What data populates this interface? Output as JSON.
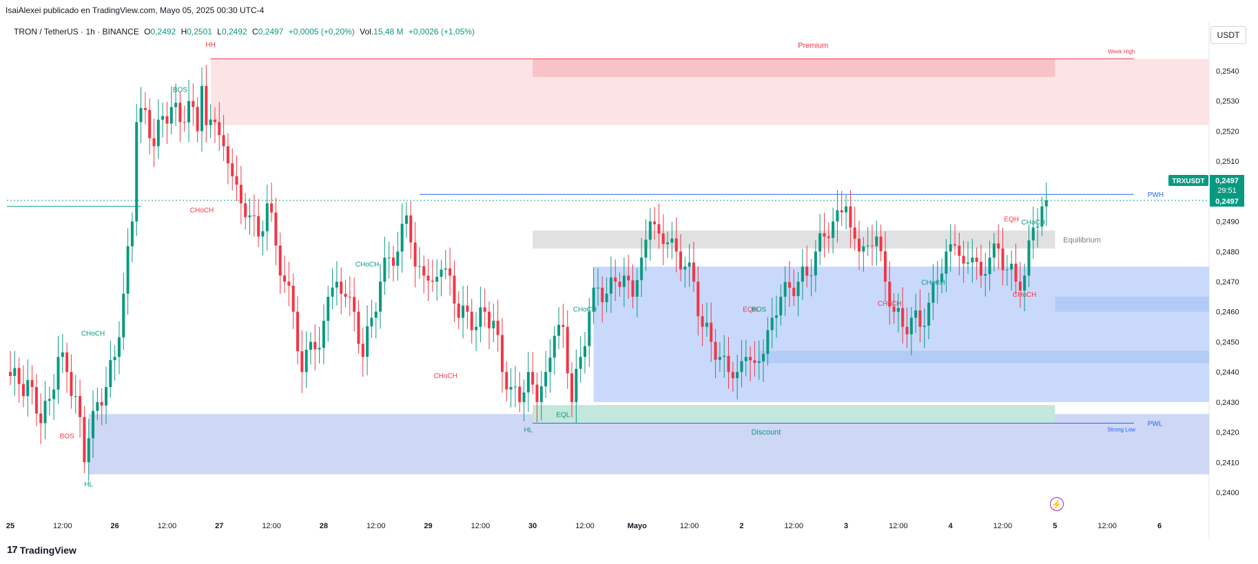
{
  "header": {
    "publisher": "IsaiAlexei publicado en TradingView.com, Mayo 05, 2025 00:30 UTC-4"
  },
  "legend": {
    "symbol": "TRON / TetherUS · 1h · BINANCE",
    "o_label": "O",
    "o": "0,2492",
    "h_label": "H",
    "h": "0,2501",
    "l_label": "L",
    "l": "0,2492",
    "c_label": "C",
    "c": "0,2497",
    "change": "+0,0005 (+0,20%)",
    "vol_label": "Vol.",
    "vol": "15,48 M",
    "vol_change": "+0,0026 (+1,05%)"
  },
  "currency_button": "USDT",
  "footer": {
    "logo_text": "TradingView",
    "logo_mark": "17"
  },
  "flash_icon": "lightning-icon",
  "colors": {
    "up": "#089981",
    "down": "#f23645",
    "premium": "#fce4e6",
    "premium_strong": "#f8c2c8",
    "discount": "#c9d3f3",
    "demand": "#c8d9fb",
    "demand_strong": "#b3cbf7",
    "equilibrium": "#e1e1e4",
    "blue_line": "#2962ff",
    "green_zone": "#c3e7da"
  },
  "chart_data": {
    "type": "candlestick",
    "symbol_tag": "TRXUSDT",
    "last_price": "0,2497",
    "countdown": "29:51",
    "price_line_label": "0,2497",
    "y_ticks": [
      "0,2540",
      "0,2530",
      "0,2520",
      "0,2510",
      "0,2490",
      "0,2480",
      "0,2470",
      "0,2460",
      "0,2450",
      "0,2440",
      "0,2430",
      "0,2420",
      "0,2410",
      "0,2400"
    ],
    "y_tick_values": [
      0.254,
      0.253,
      0.252,
      0.251,
      0.249,
      0.248,
      0.247,
      0.246,
      0.245,
      0.244,
      0.243,
      0.242,
      0.241,
      0.24
    ],
    "ylim": [
      0.2396,
      0.2556
    ],
    "x_ticks": [
      "25",
      "12:00",
      "26",
      "12:00",
      "27",
      "12:00",
      "28",
      "12:00",
      "29",
      "12:00",
      "30",
      "12:00",
      "Mayo",
      "12:00",
      "2",
      "12:00",
      "3",
      "12:00",
      "4",
      "12:00",
      "5",
      "12:00",
      "6"
    ],
    "x_tick_hours": [
      0,
      12,
      24,
      36,
      48,
      60,
      72,
      84,
      96,
      108,
      120,
      132,
      144,
      156,
      168,
      180,
      192,
      204,
      216,
      228,
      240,
      252,
      264
    ],
    "candles_anchor_close": [
      [
        0,
        0.244
      ],
      [
        3,
        0.2436
      ],
      [
        6,
        0.2435
      ],
      [
        8,
        0.2423
      ],
      [
        10,
        0.2431
      ],
      [
        12,
        0.2445
      ],
      [
        14,
        0.244
      ],
      [
        15,
        0.2432
      ],
      [
        16,
        0.2432
      ],
      [
        17,
        0.2425
      ],
      [
        18,
        0.241
      ],
      [
        19,
        0.2418
      ],
      [
        21,
        0.243
      ],
      [
        23,
        0.2435
      ],
      [
        25,
        0.2445
      ],
      [
        27,
        0.2466
      ],
      [
        29,
        0.249
      ],
      [
        30,
        0.2523
      ],
      [
        32,
        0.2527
      ],
      [
        34,
        0.2515
      ],
      [
        36,
        0.2525
      ],
      [
        38,
        0.2528
      ],
      [
        40,
        0.2523
      ],
      [
        42,
        0.253
      ],
      [
        44,
        0.252
      ],
      [
        45,
        0.2535
      ],
      [
        46,
        0.2522
      ],
      [
        48,
        0.2523
      ],
      [
        50,
        0.2515
      ],
      [
        52,
        0.2505
      ],
      [
        54,
        0.2496
      ],
      [
        56,
        0.2492
      ],
      [
        58,
        0.2485
      ],
      [
        60,
        0.2496
      ],
      [
        62,
        0.2482
      ],
      [
        64,
        0.247
      ],
      [
        66,
        0.246
      ],
      [
        68,
        0.244
      ],
      [
        70,
        0.245
      ],
      [
        72,
        0.2448
      ],
      [
        74,
        0.2465
      ],
      [
        76,
        0.247
      ],
      [
        78,
        0.2465
      ],
      [
        80,
        0.246
      ],
      [
        82,
        0.2445
      ],
      [
        84,
        0.2458
      ],
      [
        86,
        0.247
      ],
      [
        88,
        0.2478
      ],
      [
        90,
        0.248
      ],
      [
        92,
        0.2492
      ],
      [
        93,
        0.2483
      ],
      [
        94,
        0.2475
      ],
      [
        96,
        0.2472
      ],
      [
        98,
        0.247
      ],
      [
        100,
        0.2474
      ],
      [
        102,
        0.2472
      ],
      [
        104,
        0.2458
      ],
      [
        106,
        0.246
      ],
      [
        108,
        0.2455
      ],
      [
        110,
        0.246
      ],
      [
        112,
        0.2457
      ],
      [
        114,
        0.244
      ],
      [
        116,
        0.2435
      ],
      [
        118,
        0.243
      ],
      [
        120,
        0.244
      ],
      [
        122,
        0.243
      ],
      [
        124,
        0.244
      ],
      [
        126,
        0.2452
      ],
      [
        128,
        0.2455
      ],
      [
        130,
        0.243
      ],
      [
        132,
        0.2445
      ],
      [
        134,
        0.246
      ],
      [
        136,
        0.2468
      ],
      [
        138,
        0.2466
      ],
      [
        140,
        0.247
      ],
      [
        142,
        0.2472
      ],
      [
        144,
        0.2465
      ],
      [
        146,
        0.2478
      ],
      [
        148,
        0.249
      ],
      [
        150,
        0.2486
      ],
      [
        152,
        0.2483
      ],
      [
        154,
        0.248
      ],
      [
        156,
        0.2475
      ],
      [
        158,
        0.247
      ],
      [
        160,
        0.2455
      ],
      [
        162,
        0.245
      ],
      [
        164,
        0.2445
      ],
      [
        166,
        0.244
      ],
      [
        168,
        0.244
      ],
      [
        170,
        0.2445
      ],
      [
        172,
        0.2443
      ],
      [
        174,
        0.2446
      ],
      [
        176,
        0.2458
      ],
      [
        178,
        0.2465
      ],
      [
        180,
        0.2468
      ],
      [
        182,
        0.247
      ],
      [
        184,
        0.2472
      ],
      [
        186,
        0.248
      ],
      [
        188,
        0.2485
      ],
      [
        190,
        0.249
      ],
      [
        192,
        0.2493
      ],
      [
        193,
        0.2495
      ],
      [
        194,
        0.2488
      ],
      [
        196,
        0.248
      ],
      [
        198,
        0.2482
      ],
      [
        200,
        0.2485
      ],
      [
        202,
        0.247
      ],
      [
        204,
        0.246
      ],
      [
        206,
        0.2455
      ],
      [
        208,
        0.2458
      ],
      [
        210,
        0.2455
      ],
      [
        212,
        0.2463
      ],
      [
        214,
        0.247
      ],
      [
        216,
        0.248
      ],
      [
        218,
        0.2482
      ],
      [
        220,
        0.2476
      ],
      [
        222,
        0.2478
      ],
      [
        224,
        0.2472
      ],
      [
        226,
        0.2478
      ],
      [
        228,
        0.2481
      ],
      [
        230,
        0.2474
      ],
      [
        232,
        0.247
      ],
      [
        234,
        0.2472
      ],
      [
        236,
        0.2488
      ],
      [
        238,
        0.2495
      ],
      [
        239,
        0.2497
      ]
    ],
    "zones": [
      {
        "name": "Premium",
        "type": "premium",
        "y_top": 0.2544,
        "y_bottom": 0.2522,
        "x_start": 46,
        "x_end": "end"
      },
      {
        "name": "",
        "type": "premium_strong",
        "y_top": 0.2544,
        "y_bottom": 0.2538,
        "x_start": 120,
        "x_end": 240
      },
      {
        "name": "Equilibrium",
        "type": "equilibrium",
        "y_top": 0.2487,
        "y_bottom": 0.2481,
        "x_start": 120,
        "x_end": 240
      },
      {
        "name": "",
        "type": "demand",
        "y_top": 0.2475,
        "y_bottom": 0.243,
        "x_start": 134,
        "x_end": "end"
      },
      {
        "name": "",
        "type": "demand_strong",
        "y_top": 0.2465,
        "y_bottom": 0.246,
        "x_start": 240,
        "x_end": "end"
      },
      {
        "name": "",
        "type": "demand_strong",
        "y_top": 0.2447,
        "y_bottom": 0.2443,
        "x_start": 172,
        "x_end": "end"
      },
      {
        "name": "Discount",
        "type": "discount",
        "y_top": 0.2426,
        "y_bottom": 0.2406,
        "x_start": 18,
        "x_end": "end"
      },
      {
        "name": "",
        "type": "green_zone",
        "y_top": 0.2429,
        "y_bottom": 0.2423,
        "x_start": 120,
        "x_end": 240
      }
    ],
    "horizontal_levels": [
      {
        "label": "Week High",
        "price": 0.2544,
        "x_start": 46,
        "x_end": 260,
        "color": "#f23645"
      },
      {
        "label": "PWH",
        "price": 0.2499,
        "x_start": 94,
        "x_end": 260,
        "color": "#2962ff"
      },
      {
        "label": "PWL",
        "price": 0.2423,
        "x_start": 120,
        "x_end": 260,
        "color": "#2962ff"
      },
      {
        "label": "Strong Low",
        "price": 0.2423,
        "x_start": 120,
        "x_end": 260,
        "color": "#2962ff"
      }
    ],
    "structure_labels": [
      {
        "text": "HH",
        "hour": 46,
        "price": 0.2548,
        "color": "#f23645"
      },
      {
        "text": "BOS",
        "hour": 39,
        "price": 0.2533,
        "color": "#089981"
      },
      {
        "text": "CHoCH",
        "hour": 44,
        "price": 0.2493,
        "color": "#f23645"
      },
      {
        "text": "CHoCH",
        "hour": 19,
        "price": 0.2452,
        "color": "#089981"
      },
      {
        "text": "BOS",
        "hour": 13,
        "price": 0.2418,
        "color": "#f23645"
      },
      {
        "text": "HL",
        "hour": 18,
        "price": 0.2402,
        "color": "#089981"
      },
      {
        "text": "CHoCH",
        "hour": 82,
        "price": 0.2475,
        "color": "#089981"
      },
      {
        "text": "CHoCH",
        "hour": 100,
        "price": 0.2438,
        "color": "#f23645"
      },
      {
        "text": "HL",
        "hour": 119,
        "price": 0.242,
        "color": "#089981"
      },
      {
        "text": "EQL",
        "hour": 127,
        "price": 0.2425,
        "color": "#089981"
      },
      {
        "text": "CHoCH",
        "hour": 132,
        "price": 0.246,
        "color": "#089981"
      },
      {
        "text": "EQH",
        "hour": 170,
        "price": 0.246,
        "color": "#f23645"
      },
      {
        "text": "BOS",
        "hour": 172,
        "price": 0.246,
        "color": "#089981"
      },
      {
        "text": "CHoCH",
        "hour": 202,
        "price": 0.2462,
        "color": "#f23645"
      },
      {
        "text": "CHoCH",
        "hour": 212,
        "price": 0.2469,
        "color": "#089981"
      },
      {
        "text": "EQH",
        "hour": 230,
        "price": 0.249,
        "color": "#f23645"
      },
      {
        "text": "CHoCH",
        "hour": 235,
        "price": 0.2489,
        "color": "#089981"
      },
      {
        "text": "CHoCH",
        "hour": 233,
        "price": 0.2465,
        "color": "#f23645"
      }
    ]
  }
}
